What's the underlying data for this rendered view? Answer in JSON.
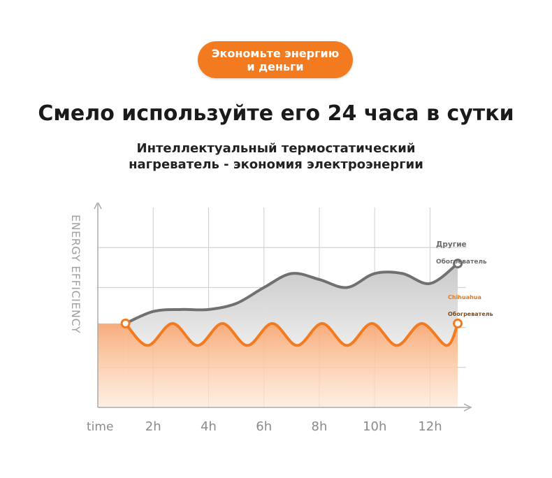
{
  "badge": {
    "line1": "Экономьте энергию",
    "line2": "и деньги"
  },
  "headline": "Смело используйте его 24 часа в сутки",
  "subline": {
    "line1": "Интеллектуальный термостатический",
    "line2": "нагреватель - экономия электроэнергии"
  },
  "chart_data": {
    "type": "line",
    "ylabel": "ENERGY EFFICIENCY",
    "xlabel": "time",
    "x_ticks": [
      "2h",
      "4h",
      "6h",
      "8h",
      "10h",
      "12h"
    ],
    "grid": true,
    "series": [
      {
        "name": "Другие Обогреватель",
        "label_lines": [
          "Другие",
          "Обогреватель"
        ],
        "color": "#707070",
        "x": [
          1,
          2,
          3,
          4,
          5,
          6,
          7,
          8,
          9,
          10,
          11,
          12,
          13
        ],
        "y": [
          2.1,
          2.4,
          2.45,
          2.45,
          2.6,
          3.0,
          3.35,
          3.2,
          3.0,
          3.35,
          3.35,
          3.1,
          3.6
        ]
      },
      {
        "name": "Chihuahua Обогреватель",
        "label_lines": [
          "Chihuahua",
          "Обогреватель"
        ],
        "color": "#f47a20",
        "x": [
          1,
          1.8,
          2.7,
          3.6,
          4.5,
          5.4,
          6.3,
          7.2,
          8.1,
          9.0,
          9.9,
          10.8,
          11.7,
          12.6,
          13
        ],
        "y": [
          2.1,
          1.55,
          2.1,
          1.55,
          2.1,
          1.55,
          2.1,
          1.55,
          2.1,
          1.55,
          2.1,
          1.55,
          2.1,
          1.55,
          2.1
        ]
      }
    ],
    "xlim": [
      0,
      13.3
    ],
    "ylim": [
      0,
      5
    ]
  },
  "colors": {
    "accent": "#f47a20",
    "grey_line": "#707070",
    "axis": "#a9a9a9"
  }
}
